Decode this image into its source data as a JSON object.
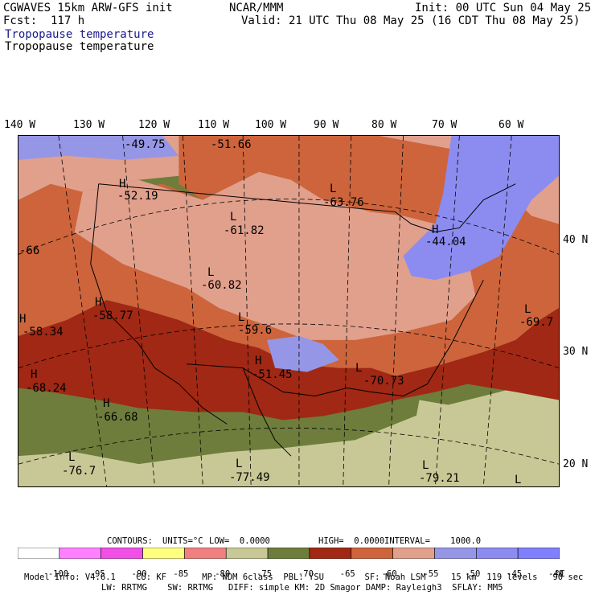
{
  "header": {
    "model": "CGWAVES 15km ARW-GFS init",
    "org": "NCAR/MMM",
    "init": "Init: 00 UTC Sun 04 May 25",
    "fcst": "Fcst:  117 h",
    "valid": "Valid: 21 UTC Thu 08 May 25 (16 CDT Thu 08 May 25)",
    "field1": "Tropopause temperature",
    "field2": "Tropopause temperature"
  },
  "longitudes": [
    "140 W",
    "130 W",
    "120 W",
    "110 W",
    "100 W",
    "90 W",
    "80 W",
    "70 W",
    "60 W"
  ],
  "latitudes": [
    "40 N",
    "30 N",
    "20 N"
  ],
  "map_labels": [
    {
      "letter": "",
      "value": "-49.75"
    },
    {
      "letter": "",
      "value": "-51.66"
    },
    {
      "letter": "H",
      "value": "-52.19"
    },
    {
      "letter": "L",
      "value": "-63.76"
    },
    {
      "letter": "L",
      "value": "-61.82"
    },
    {
      "letter": "H",
      "value": "-44.04"
    },
    {
      "letter": "",
      "value": "-66"
    },
    {
      "letter": "L",
      "value": "-60.82"
    },
    {
      "letter": "H",
      "value": "-58.77"
    },
    {
      "letter": "H",
      "value": "-58.34"
    },
    {
      "letter": "L",
      "value": "-59.6"
    },
    {
      "letter": "L",
      "value": "-69.7"
    },
    {
      "letter": "H",
      "value": "-51.45"
    },
    {
      "letter": "L",
      "value": "-70.73"
    },
    {
      "letter": "H",
      "value": "-68.24"
    },
    {
      "letter": "H",
      "value": "-66.68"
    },
    {
      "letter": "L",
      "value": "-76.7"
    },
    {
      "letter": "L",
      "value": "-77.49"
    },
    {
      "letter": "L",
      "value": "-79.21"
    },
    {
      "letter": "L",
      "value": ""
    }
  ],
  "contours": {
    "label": "CONTOURS:",
    "units": "UNITS=°C",
    "low": "LOW=  0.0000",
    "high": "HIGH=  0.0000",
    "interval": "INTERVAL=    1000.0"
  },
  "colorbar": {
    "colors": [
      "#ffffff",
      "#ff80ff",
      "#f050e6",
      "#ffff80",
      "#f08080",
      "#c8c896",
      "#6e7d3c",
      "#a02814",
      "#cd643c",
      "#e1a08c",
      "#9696e6",
      "#8c8cf0",
      "#8080ff"
    ],
    "ticks": [
      "-100",
      "-95",
      "-90",
      "-85",
      "-80",
      "-75",
      "-70",
      "-65",
      "-60",
      "-55",
      "-50",
      "-45",
      "-40"
    ],
    "unit": "°C"
  },
  "model_info": {
    "line1": "Model Info: V4.6.1    CU: KF       MP: WDM 6class  PBL: YSU        SF: Noah LSM     15 km  119 levels   90 sec",
    "line2": "LW: RRTMG    SW: RRTMG   DIFF: simple KM: 2D Smagor DAMP: Rayleigh3  SFLAY: MM5"
  }
}
